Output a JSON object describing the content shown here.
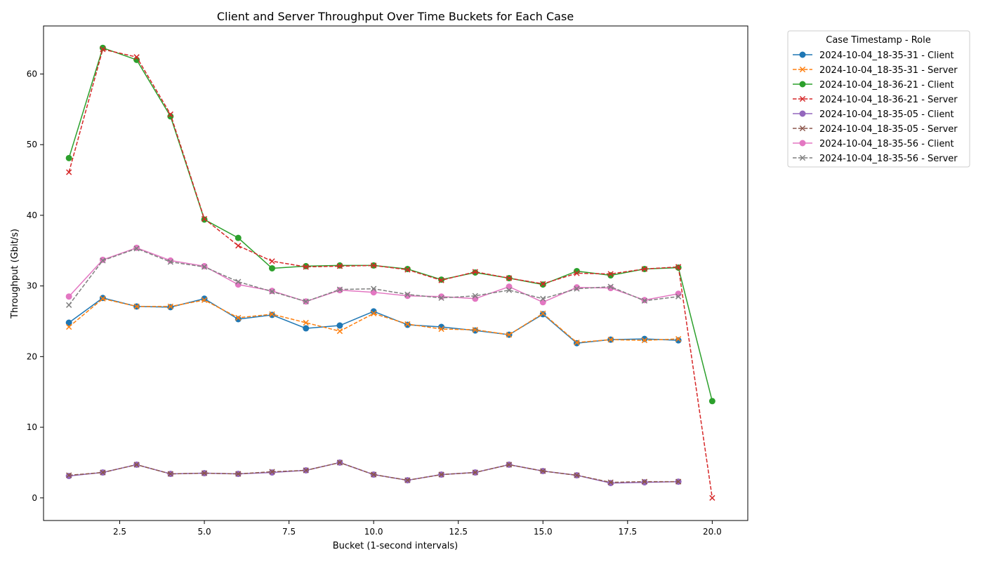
{
  "chart_data": {
    "type": "line",
    "title": "Client and Server Throughput Over Time Buckets for Each Case",
    "xlabel": "Bucket (1-second intervals)",
    "ylabel": "Throughput (Gbit/s)",
    "xlim": [
      0.25,
      21.05
    ],
    "ylim": [
      -3.2,
      66.8
    ],
    "x_ticks": [
      2.5,
      5.0,
      7.5,
      10.0,
      12.5,
      15.0,
      17.5,
      20.0
    ],
    "x_tick_labels": [
      "2.5",
      "5.0",
      "7.5",
      "10.0",
      "12.5",
      "15.0",
      "17.5",
      "20.0"
    ],
    "y_ticks": [
      0,
      10,
      20,
      30,
      40,
      50,
      60
    ],
    "y_tick_labels": [
      "0",
      "10",
      "20",
      "30",
      "40",
      "50",
      "60"
    ],
    "grid": false,
    "legend": {
      "title": "Case Timestamp - Role",
      "placement": "outside-top-right"
    },
    "series": [
      {
        "name": "2024-10-04_18-35-31 - Client",
        "color": "#1f77b4",
        "marker": "circle",
        "dash": "solid",
        "x": [
          1,
          2,
          3,
          4,
          5,
          6,
          7,
          8,
          9,
          10,
          11,
          12,
          13,
          14,
          15,
          16,
          17,
          18,
          19
        ],
        "y": [
          24.8,
          28.3,
          27.1,
          27.0,
          28.2,
          25.3,
          25.9,
          24.0,
          24.4,
          26.4,
          24.5,
          24.2,
          23.7,
          23.1,
          26.0,
          21.9,
          22.4,
          22.5,
          22.3
        ]
      },
      {
        "name": "2024-10-04_18-35-31 - Server",
        "color": "#ff7f0e",
        "marker": "x",
        "dash": "dashed",
        "x": [
          1,
          2,
          3,
          4,
          5,
          6,
          7,
          8,
          9,
          10,
          11,
          12,
          13,
          14,
          15,
          16,
          17,
          18,
          19
        ],
        "y": [
          24.2,
          28.2,
          27.1,
          27.1,
          28.0,
          25.5,
          26.0,
          24.8,
          23.6,
          26.1,
          24.6,
          23.9,
          23.8,
          23.1,
          26.1,
          22.0,
          22.4,
          22.3,
          22.5
        ]
      },
      {
        "name": "2024-10-04_18-36-21 - Client",
        "color": "#2ca02c",
        "marker": "circle",
        "dash": "solid",
        "x": [
          1,
          2,
          3,
          4,
          5,
          6,
          7,
          8,
          9,
          10,
          11,
          12,
          13,
          14,
          15,
          16,
          17,
          18,
          19,
          20
        ],
        "y": [
          48.1,
          63.7,
          62.0,
          54.0,
          39.4,
          36.8,
          32.5,
          32.8,
          32.9,
          32.9,
          32.4,
          30.9,
          31.9,
          31.1,
          30.2,
          32.1,
          31.5,
          32.4,
          32.6,
          13.7
        ]
      },
      {
        "name": "2024-10-04_18-36-21 - Server",
        "color": "#d62728",
        "marker": "x",
        "dash": "dashed",
        "x": [
          1,
          2,
          3,
          4,
          5,
          6,
          7,
          8,
          9,
          10,
          11,
          12,
          13,
          14,
          15,
          16,
          17,
          18,
          19,
          20
        ],
        "y": [
          46.1,
          63.5,
          62.4,
          54.3,
          39.5,
          35.7,
          33.5,
          32.7,
          32.8,
          32.9,
          32.3,
          30.8,
          32.0,
          31.1,
          30.3,
          31.8,
          31.7,
          32.4,
          32.7,
          0.0
        ]
      },
      {
        "name": "2024-10-04_18-35-05 - Client",
        "color": "#9467bd",
        "marker": "circle",
        "dash": "solid",
        "x": [
          1,
          2,
          3,
          4,
          5,
          6,
          7,
          8,
          9,
          10,
          11,
          12,
          13,
          14,
          15,
          16,
          17,
          18,
          19
        ],
        "y": [
          3.1,
          3.6,
          4.7,
          3.4,
          3.5,
          3.4,
          3.6,
          3.9,
          5.0,
          3.3,
          2.5,
          3.3,
          3.6,
          4.7,
          3.8,
          3.2,
          2.1,
          2.2,
          2.3
        ]
      },
      {
        "name": "2024-10-04_18-35-05 - Server",
        "color": "#8c564b",
        "marker": "x",
        "dash": "dashed",
        "x": [
          1,
          2,
          3,
          4,
          5,
          6,
          7,
          8,
          9,
          10,
          11,
          12,
          13,
          14,
          15,
          16,
          17,
          18,
          19
        ],
        "y": [
          3.2,
          3.6,
          4.7,
          3.4,
          3.5,
          3.4,
          3.7,
          3.9,
          5.0,
          3.3,
          2.5,
          3.3,
          3.6,
          4.7,
          3.8,
          3.2,
          2.2,
          2.3,
          2.3
        ]
      },
      {
        "name": "2024-10-04_18-35-56 - Client",
        "color": "#e377c2",
        "marker": "circle",
        "dash": "solid",
        "x": [
          1,
          2,
          3,
          4,
          5,
          6,
          7,
          8,
          9,
          10,
          11,
          12,
          13,
          14,
          15,
          16,
          17,
          18,
          19
        ],
        "y": [
          28.5,
          33.7,
          35.4,
          33.6,
          32.8,
          30.2,
          29.3,
          27.8,
          29.4,
          29.1,
          28.6,
          28.5,
          28.2,
          29.9,
          27.7,
          29.8,
          29.7,
          28.0,
          28.9
        ]
      },
      {
        "name": "2024-10-04_18-35-56 - Server",
        "color": "#7f7f7f",
        "marker": "x",
        "dash": "dashed",
        "x": [
          1,
          2,
          3,
          4,
          5,
          6,
          7,
          8,
          9,
          10,
          11,
          12,
          13,
          14,
          15,
          16,
          17,
          18,
          19
        ],
        "y": [
          27.3,
          33.6,
          35.3,
          33.4,
          32.7,
          30.6,
          29.2,
          27.8,
          29.5,
          29.6,
          28.8,
          28.3,
          28.6,
          29.4,
          28.2,
          29.6,
          29.9,
          27.9,
          28.5
        ]
      }
    ]
  }
}
